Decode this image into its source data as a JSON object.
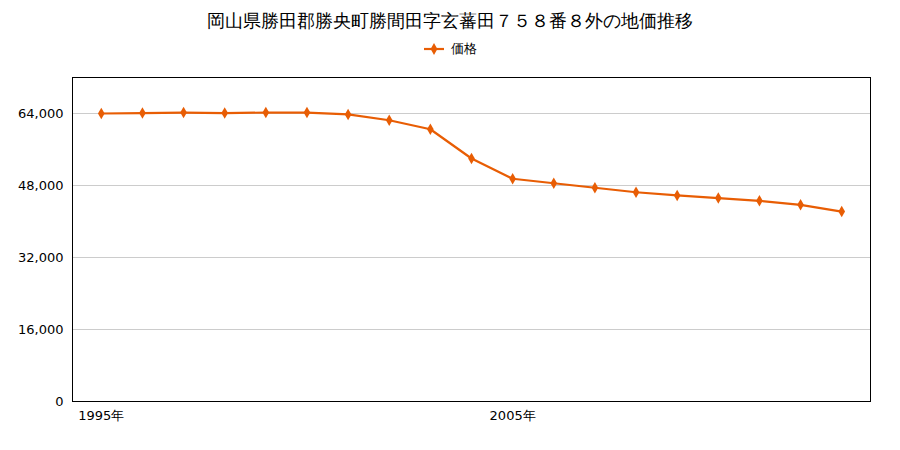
{
  "chart_data": {
    "type": "line",
    "title": "岡山県勝田郡勝央町勝間田字玄蕃田７５８番８外の地価推移",
    "x": [
      1995,
      1996,
      1997,
      1998,
      1999,
      2000,
      2001,
      2002,
      2003,
      2004,
      2005,
      2006,
      2007,
      2008,
      2009,
      2010,
      2011,
      2012,
      2013
    ],
    "series": [
      {
        "name": "価格",
        "color": "#e85d04",
        "marker": "diamond",
        "values": [
          64000,
          64100,
          64200,
          64100,
          64200,
          64200,
          63800,
          62500,
          60500,
          54000,
          49500,
          48500,
          47500,
          46500,
          45800,
          45200,
          44600,
          43700,
          42200
        ]
      }
    ],
    "xlim": [
      1994.3,
      2013.7
    ],
    "xticks": [
      {
        "value": 1995,
        "label": "1995年"
      },
      {
        "value": 2005,
        "label": "2005年"
      }
    ],
    "ylim": [
      0,
      72000
    ],
    "yticks": [
      0,
      {
        "value": 16000,
        "label": "16,000"
      },
      {
        "value": 32000,
        "label": "32,000"
      },
      {
        "value": 48000,
        "label": "48,000"
      },
      {
        "value": 64000,
        "label": "64,000"
      }
    ],
    "grid": "y",
    "legend": "top"
  }
}
